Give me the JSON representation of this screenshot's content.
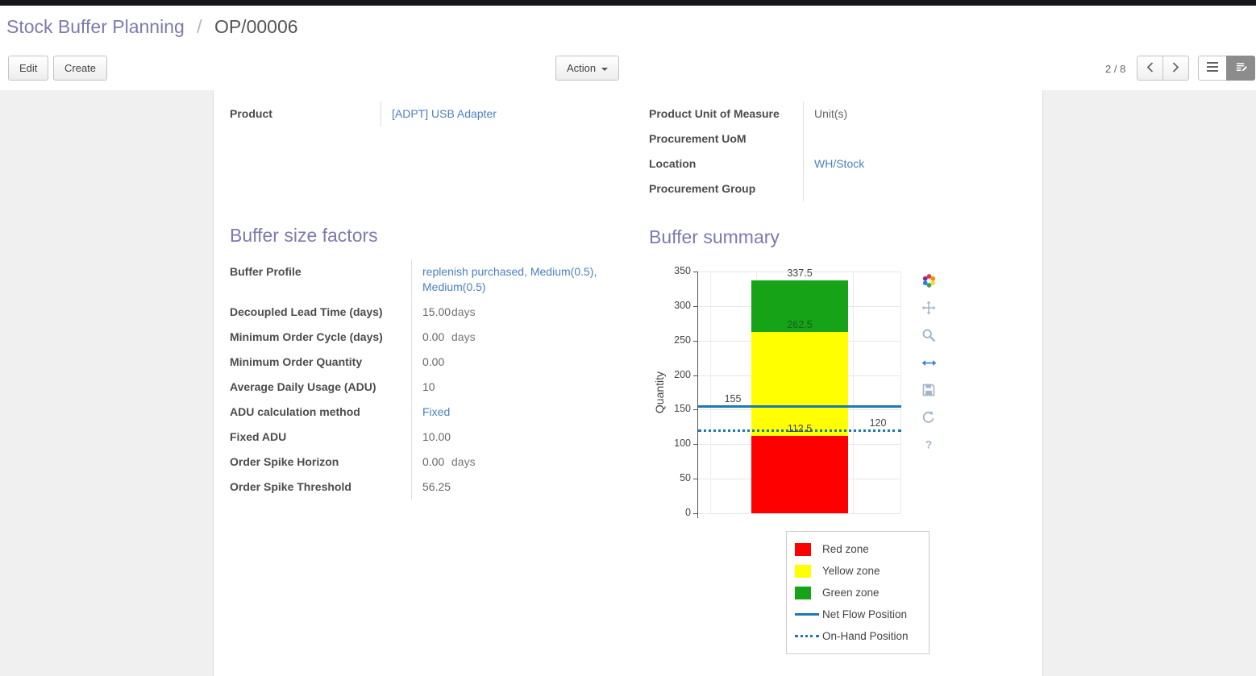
{
  "breadcrumb": {
    "primary": "Stock Buffer Planning",
    "separator": "/",
    "current": "OP/00006"
  },
  "control_panel": {
    "edit_label": "Edit",
    "create_label": "Create",
    "action_label": "Action",
    "pager_value": "2 / 8"
  },
  "icons": {
    "action_caret": "caret-down-icon",
    "pager_prev": "chevron-left-icon",
    "pager_next": "chevron-right-icon",
    "list_view": "list-icon",
    "form_view": "form-edit-icon"
  },
  "general": {
    "left": [
      {
        "label": "Product",
        "value": "[ADPT] USB Adapter",
        "type": "link"
      }
    ],
    "right": [
      {
        "label": "Product Unit of Measure",
        "value": "Unit(s)",
        "type": "text"
      },
      {
        "label": "Procurement UoM",
        "value": "",
        "type": "text"
      },
      {
        "label": "Location",
        "value": "WH/Stock",
        "type": "link"
      },
      {
        "label": "Procurement Group",
        "value": "",
        "type": "text"
      }
    ]
  },
  "buffer_factors": {
    "title": "Buffer size factors",
    "fields": [
      {
        "label": "Buffer Profile",
        "value": "replenish purchased, Medium(0.5), Medium(0.5)",
        "type": "link"
      },
      {
        "label": "Decoupled Lead Time (days)",
        "value": "15.00",
        "suffix": "days",
        "type": "text"
      },
      {
        "label": "Minimum Order Cycle (days)",
        "value": "0.00",
        "suffix": "days",
        "type": "text"
      },
      {
        "label": "Minimum Order Quantity",
        "value": "0.00",
        "type": "text"
      },
      {
        "label": "Average Daily Usage (ADU)",
        "value": "10",
        "type": "text"
      },
      {
        "label": "ADU calculation method",
        "value": "Fixed",
        "type": "link"
      },
      {
        "label": "Fixed ADU",
        "value": "10.00",
        "type": "text"
      },
      {
        "label": "Order Spike Horizon",
        "value": "0.00",
        "suffix": "days",
        "type": "text"
      },
      {
        "label": "Order Spike Threshold",
        "value": "56.25",
        "type": "text"
      }
    ]
  },
  "buffer_summary": {
    "title": "Buffer summary"
  },
  "chart_data": {
    "type": "bar",
    "stacked": true,
    "title": "",
    "xlabel": "",
    "ylabel": "Quantity",
    "ylim": [
      0,
      350
    ],
    "yticks": [
      0,
      50,
      100,
      150,
      200,
      250,
      300,
      350
    ],
    "grid": true,
    "zones": [
      {
        "name": "Red zone",
        "from": 0,
        "to": 112.5,
        "color": "#ff0000"
      },
      {
        "name": "Yellow zone",
        "from": 112.5,
        "to": 262.5,
        "color": "#ffff00"
      },
      {
        "name": "Green zone",
        "from": 262.5,
        "to": 337.5,
        "color": "#17a317"
      }
    ],
    "lines": [
      {
        "name": "Net Flow Position",
        "value": 155,
        "style": "solid",
        "color": "#1f77b4"
      },
      {
        "name": "On-Hand Position",
        "value": 120,
        "style": "dotted",
        "color": "#1f77b4"
      }
    ],
    "annotations": [
      {
        "text": "337.5",
        "y": 337.5,
        "align": "bar-center",
        "color": "#444444"
      },
      {
        "text": "262.5",
        "y": 262.5,
        "align": "bar-center",
        "color": "#14611c"
      },
      {
        "text": "155",
        "y": 155,
        "align": "left",
        "color": "#444444"
      },
      {
        "text": "112.5",
        "y": 112.5,
        "align": "bar-center",
        "color": "#444444"
      },
      {
        "text": "120",
        "y": 120,
        "align": "right",
        "color": "#444444"
      }
    ],
    "legend_position": "below-right",
    "legend_items": [
      {
        "label": "Red zone",
        "swatch": "square",
        "color": "#ff0000"
      },
      {
        "label": "Yellow zone",
        "swatch": "square",
        "color": "#ffff00"
      },
      {
        "label": "Green zone",
        "swatch": "square",
        "color": "#17a317"
      },
      {
        "label": "Net Flow Position",
        "swatch": "line",
        "color": "#1f77b4"
      },
      {
        "label": "On-Hand Position",
        "swatch": "dotted",
        "color": "#1f77b4"
      }
    ],
    "modebar": [
      "plotly-logo",
      "pan-icon",
      "zoom-icon",
      "autoscale-icon",
      "save-icon",
      "reset-axes-icon",
      "help-icon"
    ]
  }
}
